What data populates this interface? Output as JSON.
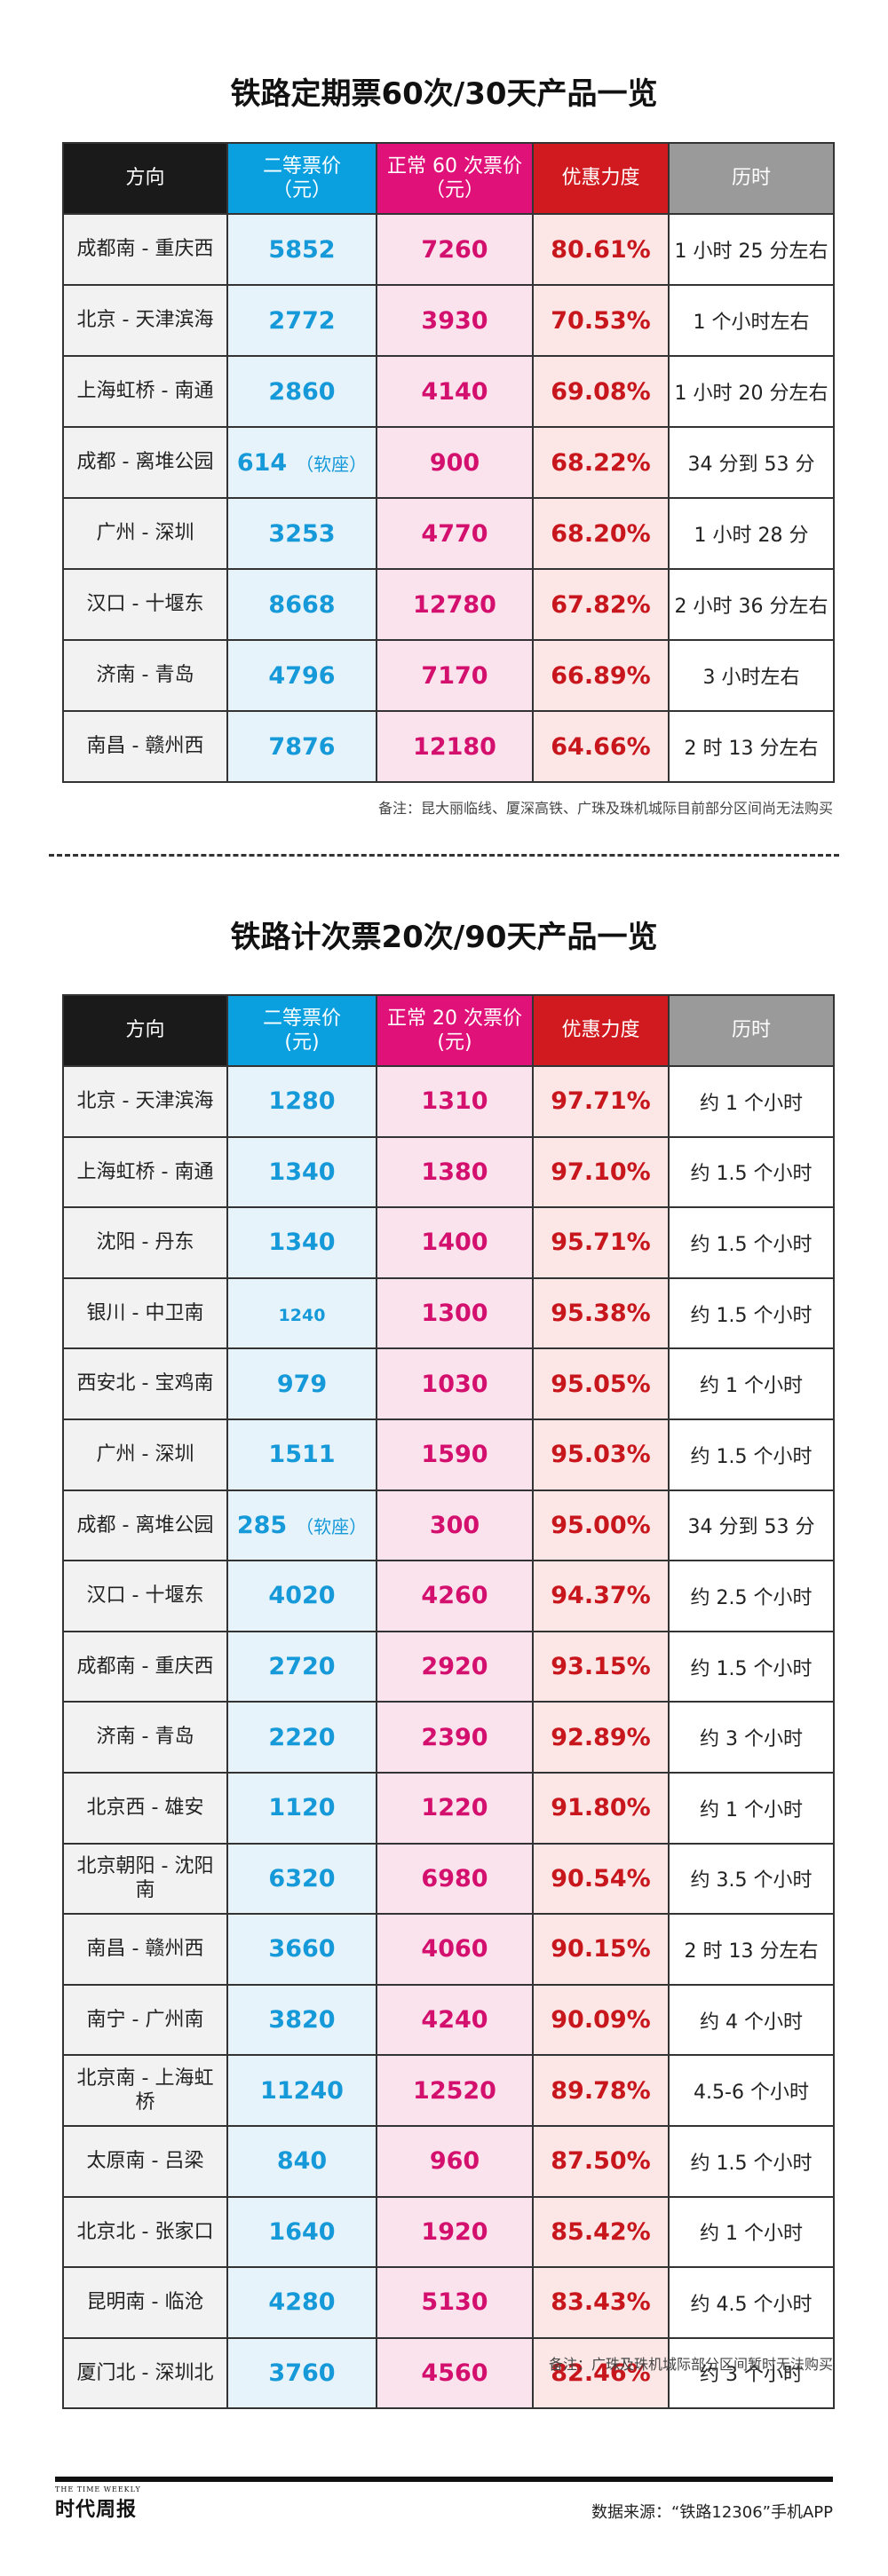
{
  "section1": {
    "title": "铁路定期票60次/30天产品一览",
    "headers": {
      "direction": "方向",
      "second_class_l1": "二等票价",
      "second_class_l2": "（元）",
      "normal_l1": "正常 60 次票价",
      "normal_l2": "（元）",
      "discount": "优惠力度",
      "duration": "历时"
    },
    "rows": [
      {
        "direction": "成都南 - 重庆西",
        "second": "5852",
        "second_note": "",
        "normal": "7260",
        "discount": "80.61%",
        "duration": "1 小时 25 分左右"
      },
      {
        "direction": "北京 - 天津滨海",
        "second": "2772",
        "second_note": "",
        "normal": "3930",
        "discount": "70.53%",
        "duration": "1 个小时左右"
      },
      {
        "direction": "上海虹桥 - 南通",
        "second": "2860",
        "second_note": "",
        "normal": "4140",
        "discount": "69.08%",
        "duration": "1 小时 20 分左右"
      },
      {
        "direction": "成都 - 离堆公园",
        "second": "614",
        "second_note": "（软座）",
        "normal": "900",
        "discount": "68.22%",
        "duration": "34 分到 53 分"
      },
      {
        "direction": "广州 - 深圳",
        "second": "3253",
        "second_note": "",
        "normal": "4770",
        "discount": "68.20%",
        "duration": "1 小时 28 分"
      },
      {
        "direction": "汉口 - 十堰东",
        "second": "8668",
        "second_note": "",
        "normal": "12780",
        "discount": "67.82%",
        "duration": "2 小时 36 分左右"
      },
      {
        "direction": "济南 - 青岛",
        "second": "4796",
        "second_note": "",
        "normal": "7170",
        "discount": "66.89%",
        "duration": "3 小时左右"
      },
      {
        "direction": "南昌 - 赣州西",
        "second": "7876",
        "second_note": "",
        "normal": "12180",
        "discount": "64.66%",
        "duration": "2 时 13 分左右"
      }
    ],
    "note": "备注：昆大丽临线、厦深高铁、广珠及珠机城际目前部分区间尚无法购买"
  },
  "section2": {
    "title": "铁路计次票20次/90天产品一览",
    "headers": {
      "direction": "方向",
      "second_class_l1": "二等票价",
      "second_class_l2": "(元)",
      "normal_l1": "正常 20 次票价",
      "normal_l2": "(元)",
      "discount": "优惠力度",
      "duration": "历时"
    },
    "rows": [
      {
        "direction": "北京 - 天津滨海",
        "second": "1280",
        "second_note": "",
        "normal": "1310",
        "discount": "97.71%",
        "duration": "约 1 个小时"
      },
      {
        "direction": "上海虹桥 - 南通",
        "second": "1340",
        "second_note": "",
        "normal": "1380",
        "discount": "97.10%",
        "duration": "约 1.5 个小时"
      },
      {
        "direction": "沈阳 - 丹东",
        "second": "1340",
        "second_note": "",
        "normal": "1400",
        "discount": "95.71%",
        "duration": "约 1.5 个小时"
      },
      {
        "direction": "银川 - 中卫南",
        "second": "1240",
        "second_note": "",
        "normal": "1300",
        "discount": "95.38%",
        "duration": "约 1.5 个小时",
        "small": true
      },
      {
        "direction": "西安北 - 宝鸡南",
        "second": "979",
        "second_note": "",
        "normal": "1030",
        "discount": "95.05%",
        "duration": "约 1 个小时"
      },
      {
        "direction": "广州 - 深圳",
        "second": "1511",
        "second_note": "",
        "normal": "1590",
        "discount": "95.03%",
        "duration": "约 1.5 个小时"
      },
      {
        "direction": "成都 - 离堆公园",
        "second": "285",
        "second_note": "（软座）",
        "normal": "300",
        "discount": "95.00%",
        "duration": "34 分到 53 分"
      },
      {
        "direction": "汉口 - 十堰东",
        "second": "4020",
        "second_note": "",
        "normal": "4260",
        "discount": "94.37%",
        "duration": "约 2.5 个小时"
      },
      {
        "direction": "成都南 - 重庆西",
        "second": "2720",
        "second_note": "",
        "normal": "2920",
        "discount": "93.15%",
        "duration": "约 1.5 个小时"
      },
      {
        "direction": "济南 - 青岛",
        "second": "2220",
        "second_note": "",
        "normal": "2390",
        "discount": "92.89%",
        "duration": "约 3 个小时"
      },
      {
        "direction": "北京西 - 雄安",
        "second": "1120",
        "second_note": "",
        "normal": "1220",
        "discount": "91.80%",
        "duration": "约 1 个小时"
      },
      {
        "direction": "北京朝阳 - 沈阳南",
        "second": "6320",
        "second_note": "",
        "normal": "6980",
        "discount": "90.54%",
        "duration": "约 3.5 个小时"
      },
      {
        "direction": "南昌 - 赣州西",
        "second": "3660",
        "second_note": "",
        "normal": "4060",
        "discount": "90.15%",
        "duration": "2 时 13 分左右"
      },
      {
        "direction": "南宁 - 广州南",
        "second": "3820",
        "second_note": "",
        "normal": "4240",
        "discount": "90.09%",
        "duration": "约 4 个小时"
      },
      {
        "direction": "北京南 - 上海虹桥",
        "second": "11240",
        "second_note": "",
        "normal": "12520",
        "discount": "89.78%",
        "duration": "4.5-6 个小时"
      },
      {
        "direction": "太原南 - 吕梁",
        "second": "840",
        "second_note": "",
        "normal": "960",
        "discount": "87.50%",
        "duration": "约 1.5 个小时"
      },
      {
        "direction": "北京北 - 张家口",
        "second": "1640",
        "second_note": "",
        "normal": "1920",
        "discount": "85.42%",
        "duration": "约 1 个小时"
      },
      {
        "direction": "昆明南 - 临沧",
        "second": "4280",
        "second_note": "",
        "normal": "5130",
        "discount": "83.43%",
        "duration": "约 4.5 个小时"
      },
      {
        "direction": "厦门北 - 深圳北",
        "second": "3760",
        "second_note": "",
        "normal": "4560",
        "discount": "82.46%",
        "duration": "约 3 个小时"
      }
    ],
    "note": "备注：广珠及珠机城际部分区间暂时无法购买"
  },
  "footer": {
    "logo_en": "THE TIME WEEKLY",
    "logo_cn": "时代周报",
    "source": "数据来源：“铁路12306”手机APP"
  },
  "colors": {
    "header_direction": "#1a1a1a",
    "header_second": "#0aa0e0",
    "header_normal": "#e0127a",
    "header_discount": "#d11a1f",
    "header_duration": "#9a9a9a"
  }
}
